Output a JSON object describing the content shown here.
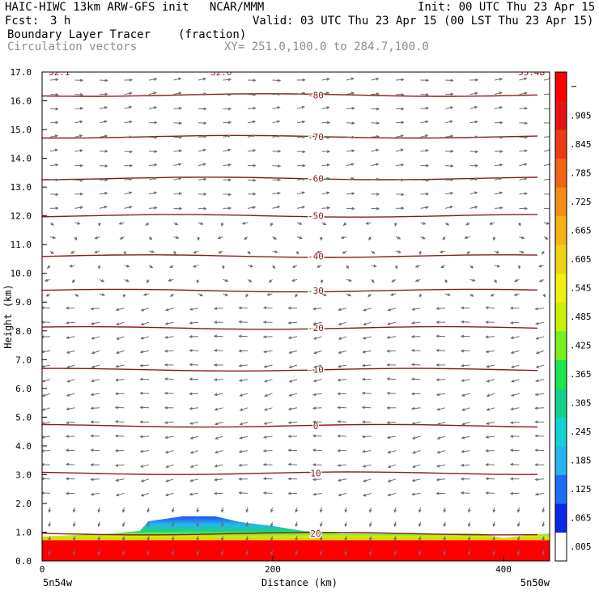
{
  "header": {
    "model_line": "HAIC-HIWC 13km ARW-GFS init   NCAR/MMM",
    "init_line": "Init: 00 UTC Thu 23 Apr 15",
    "fcst_label": "Fcst:",
    "fcst_value": "3 h",
    "valid_line": "Valid: 03 UTC Thu 23 Apr 15 (00 LST Thu 23 Apr 15)",
    "field_name": "Boundary Layer Tracer",
    "field_units": "(fraction)",
    "vector_name": "Circulation vectors",
    "xsec_line": "XY= 251.0,100.0 to 284.7,100.0"
  },
  "chart_data": {
    "type": "heatmap",
    "title": "Boundary Layer Tracer",
    "ylabel": "Height (km)",
    "xlabel": "Distance (km)",
    "ylim": [
      0,
      17
    ],
    "xlim": [
      0,
      440
    ],
    "y_ticks": [
      "0.0",
      "1.0",
      "2.0",
      "3.0",
      "4.0",
      "5.0",
      "6.0",
      "7.0",
      "8.0",
      "9.0",
      "10.0",
      "11.0",
      "12.0",
      "13.0",
      "14.0",
      "15.0",
      "16.0",
      "17.0"
    ],
    "x_ticks": [
      "0",
      "200",
      "400"
    ],
    "x_endpoints": {
      "left": "5n54w",
      "right": "5n50w"
    },
    "top_corner_labels": [
      "32.1",
      "32.0",
      "33.4B"
    ],
    "colorbar": {
      "labels": [
        ".005",
        ".065",
        ".125",
        ".185",
        ".245",
        ".305",
        ".365",
        ".425",
        ".485",
        ".545",
        ".605",
        ".665",
        ".725",
        ".785",
        ".845",
        ".905"
      ],
      "colors": [
        "#ffffff",
        "#0a28e6",
        "#1e6ef5",
        "#28b4f0",
        "#14d2d2",
        "#14d28c",
        "#1ee650",
        "#78f01e",
        "#c8f00a",
        "#f0f014",
        "#f0d214",
        "#f5b414",
        "#f58c14",
        "#f06414",
        "#eb3c14",
        "#e61414",
        "#ff0000"
      ]
    },
    "temperature_contours": [
      {
        "label": "-80",
        "height": 16.2
      },
      {
        "label": "-70",
        "height": 14.75
      },
      {
        "label": "-60",
        "height": 13.3
      },
      {
        "label": "-50",
        "height": 12.0
      },
      {
        "label": "-40",
        "height": 10.6
      },
      {
        "label": "-30",
        "height": 9.4
      },
      {
        "label": "-20",
        "height": 8.1
      },
      {
        "label": "-10",
        "height": 6.65
      },
      {
        "label": "0",
        "height": 4.7
      },
      {
        "label": "10",
        "height": 3.05
      },
      {
        "label": "20",
        "height": 0.95
      }
    ]
  }
}
